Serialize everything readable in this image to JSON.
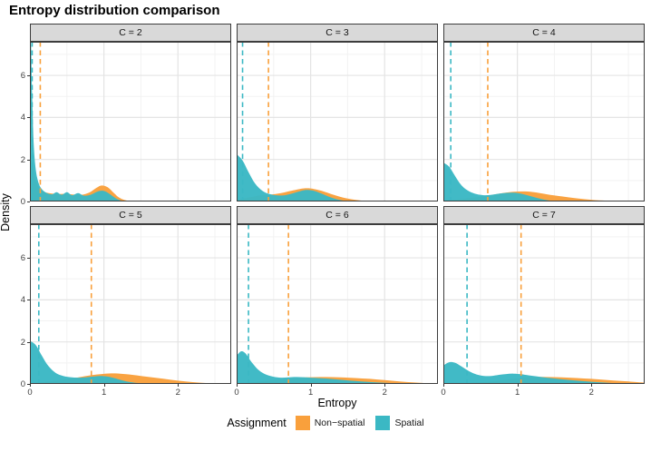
{
  "title": "Entropy distribution comparison",
  "axes": {
    "x_label": "Entropy",
    "y_label": "Density",
    "x_ticks": [
      0,
      1,
      2
    ],
    "y_ticks": [
      0,
      2,
      4,
      6
    ],
    "x_minor": [
      0.5,
      1.5,
      2.5
    ],
    "y_minor": [
      1,
      3,
      5,
      7
    ],
    "x_domain": [
      0,
      2.72
    ],
    "y_domain": [
      0,
      7.6
    ]
  },
  "colors": {
    "non_spatial": "#F9A03C",
    "spatial": "#3BB8C4",
    "strip_bg": "#d9d9d9",
    "panel_border": "#3c3c3c",
    "grid_major": "#e4e4e4",
    "grid_minor": "#f2f2f2"
  },
  "legend": {
    "title": "Assignment",
    "items": [
      {
        "label": "Non−spatial",
        "color": "#F9A03C",
        "key": "non_spatial"
      },
      {
        "label": "Spatial",
        "color": "#3BB8C4",
        "key": "spatial"
      }
    ]
  },
  "chart_data": {
    "type": "area",
    "subtype": "faceted-density",
    "facet_variable": "C",
    "x_variable": "Entropy",
    "y_variable": "Density",
    "facets": [
      {
        "label": "C = 2",
        "means": {
          "non_spatial": 0.14,
          "spatial": 0.03
        },
        "series": [
          {
            "name": "Non-spatial",
            "key": "non_spatial",
            "points": [
              [
                0,
                2.3
              ],
              [
                0.04,
                1.6
              ],
              [
                0.08,
                1.0
              ],
              [
                0.13,
                0.62
              ],
              [
                0.2,
                0.45
              ],
              [
                0.3,
                0.38
              ],
              [
                0.4,
                0.36
              ],
              [
                0.5,
                0.36
              ],
              [
                0.6,
                0.33
              ],
              [
                0.7,
                0.32
              ],
              [
                0.8,
                0.42
              ],
              [
                0.9,
                0.65
              ],
              [
                0.97,
                0.76
              ],
              [
                1.05,
                0.68
              ],
              [
                1.13,
                0.42
              ],
              [
                1.2,
                0.2
              ],
              [
                1.28,
                0.07
              ],
              [
                1.38,
                0.01
              ],
              [
                1.45,
                0
              ]
            ]
          },
          {
            "name": "Spatial",
            "key": "spatial",
            "points": [
              [
                0,
                7.6
              ],
              [
                0.015,
                7.6
              ],
              [
                0.03,
                5.2
              ],
              [
                0.05,
                2.8
              ],
              [
                0.08,
                1.5
              ],
              [
                0.12,
                0.85
              ],
              [
                0.17,
                0.55
              ],
              [
                0.23,
                0.4
              ],
              [
                0.3,
                0.34
              ],
              [
                0.36,
                0.44
              ],
              [
                0.43,
                0.32
              ],
              [
                0.5,
                0.44
              ],
              [
                0.57,
                0.3
              ],
              [
                0.65,
                0.4
              ],
              [
                0.73,
                0.28
              ],
              [
                0.82,
                0.32
              ],
              [
                0.92,
                0.48
              ],
              [
                1.0,
                0.5
              ],
              [
                1.08,
                0.35
              ],
              [
                1.16,
                0.15
              ],
              [
                1.24,
                0.04
              ],
              [
                1.32,
                0
              ]
            ]
          }
        ]
      },
      {
        "label": "C = 3",
        "means": {
          "non_spatial": 0.43,
          "spatial": 0.08
        },
        "series": [
          {
            "name": "Non-spatial",
            "key": "non_spatial",
            "points": [
              [
                0,
                0.08
              ],
              [
                0.15,
                0.18
              ],
              [
                0.3,
                0.28
              ],
              [
                0.45,
                0.33
              ],
              [
                0.6,
                0.4
              ],
              [
                0.75,
                0.52
              ],
              [
                0.9,
                0.62
              ],
              [
                1.0,
                0.62
              ],
              [
                1.1,
                0.55
              ],
              [
                1.2,
                0.45
              ],
              [
                1.3,
                0.33
              ],
              [
                1.4,
                0.22
              ],
              [
                1.5,
                0.14
              ],
              [
                1.6,
                0.08
              ],
              [
                1.7,
                0.04
              ],
              [
                1.8,
                0.01
              ],
              [
                1.9,
                0
              ]
            ]
          },
          {
            "name": "Spatial",
            "key": "spatial",
            "points": [
              [
                0,
                2.25
              ],
              [
                0.08,
                1.95
              ],
              [
                0.16,
                1.4
              ],
              [
                0.25,
                0.85
              ],
              [
                0.35,
                0.5
              ],
              [
                0.45,
                0.35
              ],
              [
                0.55,
                0.29
              ],
              [
                0.65,
                0.3
              ],
              [
                0.75,
                0.38
              ],
              [
                0.85,
                0.48
              ],
              [
                0.95,
                0.55
              ],
              [
                1.05,
                0.5
              ],
              [
                1.15,
                0.37
              ],
              [
                1.25,
                0.22
              ],
              [
                1.35,
                0.11
              ],
              [
                1.45,
                0.04
              ],
              [
                1.55,
                0
              ]
            ]
          }
        ]
      },
      {
        "label": "C = 4",
        "means": {
          "non_spatial": 0.6,
          "spatial": 0.1
        },
        "series": [
          {
            "name": "Non-spatial",
            "key": "non_spatial",
            "points": [
              [
                0,
                0.04
              ],
              [
                0.2,
                0.1
              ],
              [
                0.4,
                0.18
              ],
              [
                0.6,
                0.28
              ],
              [
                0.8,
                0.4
              ],
              [
                0.95,
                0.46
              ],
              [
                1.1,
                0.48
              ],
              [
                1.25,
                0.43
              ],
              [
                1.4,
                0.34
              ],
              [
                1.6,
                0.24
              ],
              [
                1.8,
                0.15
              ],
              [
                2.0,
                0.08
              ],
              [
                2.2,
                0.04
              ],
              [
                2.4,
                0.01
              ],
              [
                2.55,
                0
              ]
            ]
          },
          {
            "name": "Spatial",
            "key": "spatial",
            "points": [
              [
                0,
                1.85
              ],
              [
                0.08,
                1.65
              ],
              [
                0.16,
                1.2
              ],
              [
                0.25,
                0.75
              ],
              [
                0.35,
                0.48
              ],
              [
                0.45,
                0.35
              ],
              [
                0.55,
                0.3
              ],
              [
                0.65,
                0.32
              ],
              [
                0.75,
                0.37
              ],
              [
                0.85,
                0.41
              ],
              [
                0.95,
                0.42
              ],
              [
                1.05,
                0.37
              ],
              [
                1.15,
                0.28
              ],
              [
                1.25,
                0.18
              ],
              [
                1.35,
                0.1
              ],
              [
                1.45,
                0.04
              ],
              [
                1.55,
                0.01
              ],
              [
                1.65,
                0
              ]
            ]
          }
        ]
      },
      {
        "label": "C = 5",
        "means": {
          "non_spatial": 0.83,
          "spatial": 0.12
        },
        "series": [
          {
            "name": "Non-spatial",
            "key": "non_spatial",
            "points": [
              [
                0,
                0.03
              ],
              [
                0.2,
                0.09
              ],
              [
                0.4,
                0.18
              ],
              [
                0.6,
                0.28
              ],
              [
                0.8,
                0.4
              ],
              [
                1.0,
                0.48
              ],
              [
                1.15,
                0.5
              ],
              [
                1.3,
                0.46
              ],
              [
                1.5,
                0.38
              ],
              [
                1.7,
                0.29
              ],
              [
                1.9,
                0.2
              ],
              [
                2.1,
                0.12
              ],
              [
                2.3,
                0.06
              ],
              [
                2.5,
                0.02
              ],
              [
                2.65,
                0
              ]
            ]
          },
          {
            "name": "Spatial",
            "key": "spatial",
            "points": [
              [
                0,
                2.05
              ],
              [
                0.08,
                1.85
              ],
              [
                0.16,
                1.35
              ],
              [
                0.25,
                0.85
              ],
              [
                0.35,
                0.52
              ],
              [
                0.45,
                0.38
              ],
              [
                0.55,
                0.32
              ],
              [
                0.65,
                0.3
              ],
              [
                0.75,
                0.31
              ],
              [
                0.85,
                0.35
              ],
              [
                0.95,
                0.38
              ],
              [
                1.05,
                0.35
              ],
              [
                1.15,
                0.27
              ],
              [
                1.25,
                0.17
              ],
              [
                1.35,
                0.09
              ],
              [
                1.5,
                0.03
              ],
              [
                1.65,
                0
              ]
            ]
          }
        ]
      },
      {
        "label": "C = 6",
        "means": {
          "non_spatial": 0.7,
          "spatial": 0.16
        },
        "series": [
          {
            "name": "Non-spatial",
            "key": "non_spatial",
            "points": [
              [
                0,
                0.02
              ],
              [
                0.2,
                0.07
              ],
              [
                0.4,
                0.15
              ],
              [
                0.6,
                0.23
              ],
              [
                0.8,
                0.29
              ],
              [
                1.0,
                0.32
              ],
              [
                1.2,
                0.33
              ],
              [
                1.4,
                0.31
              ],
              [
                1.6,
                0.28
              ],
              [
                1.8,
                0.24
              ],
              [
                2.0,
                0.18
              ],
              [
                2.2,
                0.12
              ],
              [
                2.4,
                0.07
              ],
              [
                2.6,
                0.03
              ],
              [
                2.72,
                0.01
              ]
            ]
          },
          {
            "name": "Spatial",
            "key": "spatial",
            "points": [
              [
                0,
                1.35
              ],
              [
                0.06,
                1.55
              ],
              [
                0.12,
                1.45
              ],
              [
                0.2,
                1.05
              ],
              [
                0.3,
                0.65
              ],
              [
                0.4,
                0.44
              ],
              [
                0.5,
                0.34
              ],
              [
                0.6,
                0.3
              ],
              [
                0.7,
                0.31
              ],
              [
                0.8,
                0.33
              ],
              [
                0.9,
                0.32
              ],
              [
                1.0,
                0.3
              ],
              [
                1.2,
                0.26
              ],
              [
                1.4,
                0.2
              ],
              [
                1.6,
                0.14
              ],
              [
                1.8,
                0.09
              ],
              [
                2.0,
                0.05
              ],
              [
                2.2,
                0.02
              ],
              [
                2.4,
                0
              ]
            ]
          }
        ]
      },
      {
        "label": "C = 7",
        "means": {
          "non_spatial": 1.05,
          "spatial": 0.32
        },
        "series": [
          {
            "name": "Non-spatial",
            "key": "non_spatial",
            "points": [
              [
                0,
                0.01
              ],
              [
                0.3,
                0.04
              ],
              [
                0.6,
                0.1
              ],
              [
                0.8,
                0.18
              ],
              [
                1.0,
                0.27
              ],
              [
                1.2,
                0.33
              ],
              [
                1.4,
                0.33
              ],
              [
                1.6,
                0.31
              ],
              [
                1.8,
                0.28
              ],
              [
                2.0,
                0.24
              ],
              [
                2.2,
                0.19
              ],
              [
                2.4,
                0.14
              ],
              [
                2.6,
                0.09
              ],
              [
                2.72,
                0.06
              ]
            ]
          },
          {
            "name": "Spatial",
            "key": "spatial",
            "points": [
              [
                0,
                0.88
              ],
              [
                0.08,
                1.03
              ],
              [
                0.16,
                1.0
              ],
              [
                0.25,
                0.82
              ],
              [
                0.35,
                0.6
              ],
              [
                0.45,
                0.45
              ],
              [
                0.55,
                0.38
              ],
              [
                0.65,
                0.38
              ],
              [
                0.75,
                0.43
              ],
              [
                0.85,
                0.47
              ],
              [
                0.95,
                0.49
              ],
              [
                1.05,
                0.46
              ],
              [
                1.15,
                0.41
              ],
              [
                1.3,
                0.34
              ],
              [
                1.5,
                0.26
              ],
              [
                1.7,
                0.19
              ],
              [
                1.9,
                0.13
              ],
              [
                2.1,
                0.08
              ],
              [
                2.3,
                0.04
              ],
              [
                2.5,
                0.01
              ],
              [
                2.65,
                0
              ]
            ]
          }
        ]
      }
    ]
  }
}
